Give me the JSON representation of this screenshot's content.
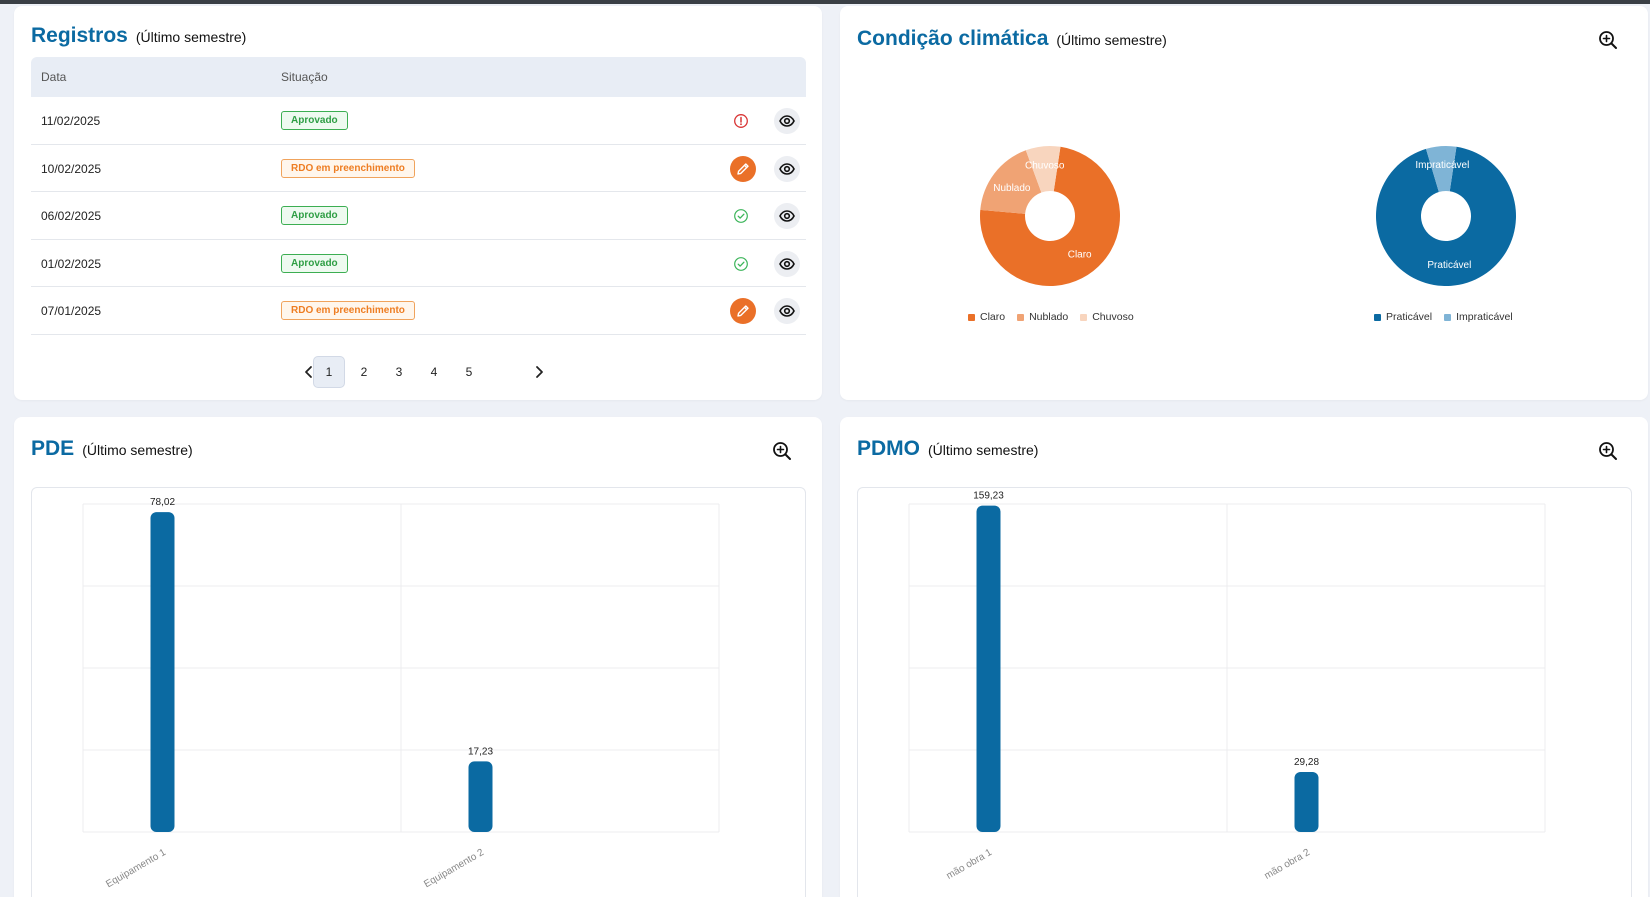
{
  "registros": {
    "title": "Registros",
    "subtitle": "(Último semestre)",
    "columns": [
      "Data",
      "Situação"
    ],
    "rows": [
      {
        "date": "11/02/2025",
        "status": "Aprovado",
        "kind": "ok",
        "action": "alert-circle-icon"
      },
      {
        "date": "10/02/2025",
        "status": "RDO em preenchimento",
        "kind": "fill",
        "action": "pencil-icon"
      },
      {
        "date": "06/02/2025",
        "status": "Aprovado",
        "kind": "ok",
        "action": "check-circle-icon"
      },
      {
        "date": "01/02/2025",
        "status": "Aprovado",
        "kind": "ok",
        "action": "check-circle-icon"
      },
      {
        "date": "07/01/2025",
        "status": "RDO em preenchimento",
        "kind": "fill",
        "action": "pencil-icon"
      }
    ],
    "pagination": {
      "pages": [
        "1",
        "2",
        "3",
        "4",
        "5"
      ],
      "current": "1"
    }
  },
  "clima": {
    "title": "Condição climática",
    "subtitle": "(Último semestre)"
  },
  "pde": {
    "title": "PDE",
    "subtitle": "(Último semestre)"
  },
  "pdmo": {
    "title": "PDMO",
    "subtitle": "(Último semestre)"
  },
  "colors": {
    "brand": "#0b6aa2",
    "bar": "#0b6aa2",
    "claro": "#ea7028",
    "nublado": "#f0a374",
    "chuvoso": "#f8d5be",
    "praticavel": "#0b6aa2",
    "impraticavel": "#7fb4d6"
  },
  "chart_data": [
    {
      "type": "pie",
      "donut": true,
      "categories": [
        "Claro",
        "Nublado",
        "Chuvoso"
      ],
      "values": [
        74,
        18,
        8
      ],
      "legend": "bottom"
    },
    {
      "type": "pie",
      "donut": true,
      "categories": [
        "Praticável",
        "Impraticável"
      ],
      "values": [
        93,
        7
      ],
      "legend": "bottom"
    },
    {
      "type": "bar",
      "categories": [
        "Equipamento 1",
        "Equipamento 2"
      ],
      "values": [
        78.02,
        17.23
      ],
      "value_labels": [
        "78,02",
        "17,23"
      ],
      "ylim": [
        0,
        80
      ],
      "grid": true
    },
    {
      "type": "bar",
      "categories": [
        "mão obra 1",
        "mão obra 2"
      ],
      "values": [
        159.23,
        29.28
      ],
      "value_labels": [
        "159,23",
        "29,28"
      ],
      "ylim": [
        0,
        160
      ],
      "grid": true
    }
  ]
}
